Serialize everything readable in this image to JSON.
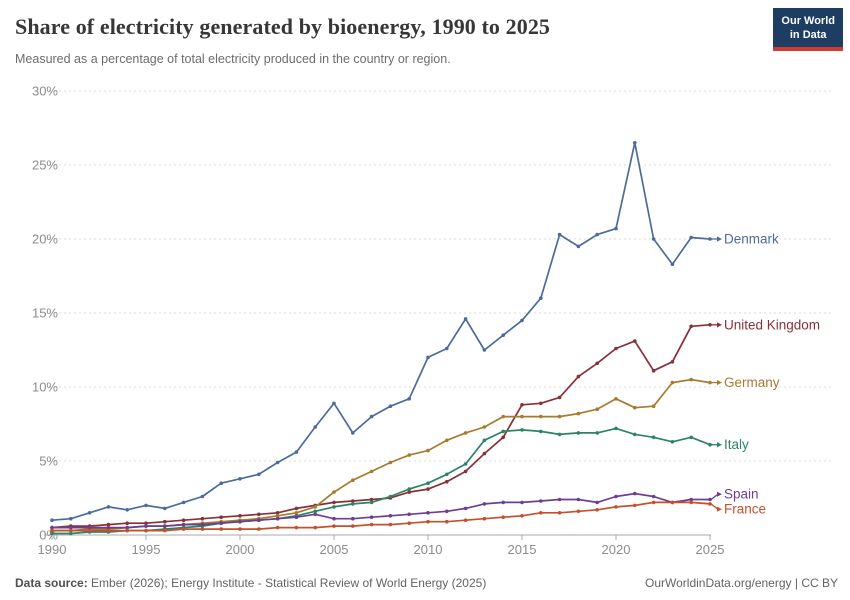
{
  "header": {
    "title": "Share of electricity generated by bioenergy, 1990 to 2025",
    "subtitle": "Measured as a percentage of total electricity produced in the country or region.",
    "logo_line1": "Our World",
    "logo_line2": "in Data"
  },
  "footer": {
    "datasource_label": "Data source:",
    "datasource_text": " Ember (2026); Energy Institute - Statistical Review of World Energy (2025)",
    "credit": "OurWorldinData.org/energy | CC BY"
  },
  "colors": {
    "logo_bg": "#1D3D63",
    "logo_underline": "#D23B33",
    "gridline": "#DBDBDB",
    "axis": "#A8A8A8",
    "tick_label": "#8C8C8C"
  },
  "chart_data": {
    "type": "line",
    "title": "Share of electricity generated by bioenergy, 1990 to 2025",
    "subtitle": "Measured as a percentage of total electricity produced in the country or region.",
    "xlabel": "",
    "ylabel": "",
    "xlim": [
      1990,
      2025
    ],
    "ylim": [
      0,
      30
    ],
    "grid": "horizontal-dashed",
    "legend_position": "end-of-line-labels",
    "x_ticks": [
      1990,
      1995,
      2000,
      2005,
      2010,
      2015,
      2020,
      2025
    ],
    "y_ticks": [
      0,
      5,
      10,
      15,
      20,
      25,
      30
    ],
    "y_tick_labels": [
      "0%",
      "5%",
      "10%",
      "15%",
      "20%",
      "25%",
      "30%"
    ],
    "x": [
      1990,
      1991,
      1992,
      1993,
      1994,
      1995,
      1996,
      1997,
      1998,
      1999,
      2000,
      2001,
      2002,
      2003,
      2004,
      2005,
      2006,
      2007,
      2008,
      2009,
      2010,
      2011,
      2012,
      2013,
      2014,
      2015,
      2016,
      2017,
      2018,
      2019,
      2020,
      2021,
      2022,
      2023,
      2024,
      2025
    ],
    "series": [
      {
        "name": "Denmark",
        "color": "#4C6B9C",
        "values": [
          1.0,
          1.1,
          1.5,
          1.9,
          1.7,
          2.0,
          1.8,
          2.2,
          2.6,
          3.5,
          3.8,
          4.1,
          4.9,
          5.6,
          7.3,
          8.9,
          6.9,
          8.0,
          8.7,
          9.2,
          12.0,
          12.6,
          14.6,
          12.5,
          13.5,
          14.5,
          16.0,
          20.3,
          19.5,
          20.3,
          20.7,
          26.5,
          20.0,
          18.3,
          20.1,
          20.0
        ]
      },
      {
        "name": "United Kingdom",
        "color": "#883039",
        "values": [
          0.5,
          0.6,
          0.6,
          0.7,
          0.8,
          0.8,
          0.9,
          1.0,
          1.1,
          1.2,
          1.3,
          1.4,
          1.5,
          1.8,
          2.0,
          2.2,
          2.3,
          2.4,
          2.5,
          2.9,
          3.1,
          3.6,
          4.3,
          5.5,
          6.6,
          8.8,
          8.9,
          9.3,
          10.7,
          11.6,
          12.6,
          13.1,
          11.1,
          11.7,
          14.1,
          14.2
        ]
      },
      {
        "name": "Germany",
        "color": "#A77B2F",
        "values": [
          0.3,
          0.3,
          0.4,
          0.4,
          0.5,
          0.6,
          0.6,
          0.7,
          0.8,
          0.9,
          1.0,
          1.1,
          1.3,
          1.5,
          1.9,
          2.9,
          3.7,
          4.3,
          4.9,
          5.4,
          5.7,
          6.4,
          6.9,
          7.3,
          8.0,
          8.0,
          8.0,
          8.0,
          8.2,
          8.5,
          9.2,
          8.6,
          8.7,
          10.3,
          10.5,
          10.3
        ]
      },
      {
        "name": "Italy",
        "color": "#2C8465",
        "values": [
          0.1,
          0.1,
          0.2,
          0.2,
          0.3,
          0.3,
          0.4,
          0.5,
          0.6,
          0.8,
          0.9,
          1.0,
          1.1,
          1.3,
          1.6,
          1.9,
          2.1,
          2.2,
          2.6,
          3.1,
          3.5,
          4.1,
          4.8,
          6.4,
          7.0,
          7.1,
          7.0,
          6.8,
          6.9,
          6.9,
          7.2,
          6.8,
          6.6,
          6.3,
          6.6,
          6.1
        ]
      },
      {
        "name": "Spain",
        "color": "#6D3E91",
        "values": [
          0.5,
          0.5,
          0.5,
          0.5,
          0.5,
          0.6,
          0.6,
          0.7,
          0.7,
          0.8,
          0.9,
          1.0,
          1.1,
          1.2,
          1.4,
          1.1,
          1.1,
          1.2,
          1.3,
          1.4,
          1.5,
          1.6,
          1.8,
          2.1,
          2.2,
          2.2,
          2.3,
          2.4,
          2.4,
          2.2,
          2.6,
          2.8,
          2.6,
          2.2,
          2.4,
          2.4
        ]
      },
      {
        "name": "France",
        "color": "#C4512C",
        "values": [
          0.3,
          0.3,
          0.3,
          0.3,
          0.3,
          0.3,
          0.3,
          0.4,
          0.4,
          0.4,
          0.4,
          0.4,
          0.5,
          0.5,
          0.5,
          0.6,
          0.6,
          0.7,
          0.7,
          0.8,
          0.9,
          0.9,
          1.0,
          1.1,
          1.2,
          1.3,
          1.5,
          1.5,
          1.6,
          1.7,
          1.9,
          2.0,
          2.2,
          2.2,
          2.2,
          2.1
        ]
      }
    ]
  }
}
